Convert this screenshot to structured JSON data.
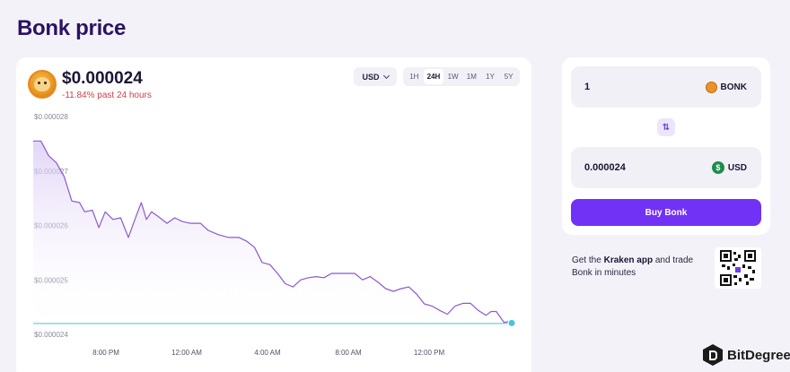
{
  "page": {
    "title": "Bonk price"
  },
  "price_header": {
    "logo_icon": "bonk-coin-icon",
    "price": "$0.000024",
    "change": "-11.84% past 24 hours",
    "change_color": "#d33c4e"
  },
  "controls": {
    "currency": "USD",
    "ranges": [
      "1H",
      "24H",
      "1W",
      "1M",
      "1Y",
      "5Y"
    ],
    "active_range": "24H"
  },
  "chart_data": {
    "type": "area",
    "y_ticks": [
      "$0.000028",
      "$0.000027",
      "$0.000026",
      "$0.000025",
      "$0.000024"
    ],
    "x_ticks": [
      "8:00 PM",
      "12:00 AM",
      "4:00 AM",
      "8:00 AM",
      "12:00 PM"
    ],
    "ylim": [
      2.4e-05,
      2.8e-05
    ],
    "line_color": "#8a5ad0",
    "reference_line_color": "#48c2de",
    "reference_value": 2.42e-05,
    "series": [
      {
        "points": [
          [
            0.0,
            2.755e-05
          ],
          [
            0.3,
            2.755e-05
          ],
          [
            0.6,
            2.728e-05
          ],
          [
            0.9,
            2.715e-05
          ],
          [
            1.2,
            2.69e-05
          ],
          [
            1.5,
            2.645e-05
          ],
          [
            1.8,
            2.642e-05
          ],
          [
            2.0,
            2.625e-05
          ],
          [
            2.3,
            2.628e-05
          ],
          [
            2.55,
            2.596e-05
          ],
          [
            2.8,
            2.625e-05
          ],
          [
            3.1,
            2.611e-05
          ],
          [
            3.4,
            2.614e-05
          ],
          [
            3.7,
            2.578e-05
          ],
          [
            4.0,
            2.617e-05
          ],
          [
            4.2,
            2.642e-05
          ],
          [
            4.4,
            2.611e-05
          ],
          [
            4.6,
            2.625e-05
          ],
          [
            4.9,
            2.615e-05
          ],
          [
            5.2,
            2.604e-05
          ],
          [
            5.5,
            2.614e-05
          ],
          [
            5.8,
            2.607e-05
          ],
          [
            6.1,
            2.604e-05
          ],
          [
            6.5,
            2.604e-05
          ],
          [
            6.8,
            2.591e-05
          ],
          [
            7.2,
            2.583e-05
          ],
          [
            7.6,
            2.578e-05
          ],
          [
            8.0,
            2.578e-05
          ],
          [
            8.3,
            2.571e-05
          ],
          [
            8.6,
            2.56e-05
          ],
          [
            8.9,
            2.532e-05
          ],
          [
            9.2,
            2.528e-05
          ],
          [
            9.5,
            2.512e-05
          ],
          [
            9.8,
            2.493e-05
          ],
          [
            10.1,
            2.487e-05
          ],
          [
            10.4,
            2.5e-05
          ],
          [
            10.7,
            2.504e-05
          ],
          [
            11.0,
            2.506e-05
          ],
          [
            11.3,
            2.504e-05
          ],
          [
            11.6,
            2.512e-05
          ],
          [
            11.9,
            2.512e-05
          ],
          [
            12.2,
            2.512e-05
          ],
          [
            12.5,
            2.512e-05
          ],
          [
            12.8,
            2.5e-05
          ],
          [
            13.1,
            2.506e-05
          ],
          [
            13.4,
            2.496e-05
          ],
          [
            13.7,
            2.484e-05
          ],
          [
            14.0,
            2.479e-05
          ],
          [
            14.3,
            2.484e-05
          ],
          [
            14.6,
            2.487e-05
          ],
          [
            14.9,
            2.474e-05
          ],
          [
            15.2,
            2.456e-05
          ],
          [
            15.5,
            2.452e-05
          ],
          [
            15.8,
            2.444e-05
          ],
          [
            16.1,
            2.437e-05
          ],
          [
            16.4,
            2.452e-05
          ],
          [
            16.7,
            2.457e-05
          ],
          [
            17.0,
            2.457e-05
          ],
          [
            17.3,
            2.444e-05
          ],
          [
            17.6,
            2.435e-05
          ],
          [
            17.8,
            2.442e-05
          ],
          [
            18.0,
            2.442e-05
          ],
          [
            18.3,
            2.422e-05
          ],
          [
            18.6,
            2.424e-05
          ]
        ]
      }
    ]
  },
  "converter": {
    "from_amount": "1",
    "from_token": "BONK",
    "from_icon": "bonk-coin-icon",
    "to_amount": "0.000024",
    "to_token": "USD",
    "to_icon": "dollar-coin-icon",
    "swap_icon": "swap-arrows-icon",
    "swap_glyph": "⇅",
    "buy_label": "Buy Bonk",
    "buy_color": "#7132f5"
  },
  "promo": {
    "prefix": "Get the",
    "app_name": "Kraken app",
    "suffix": "and trade Bonk in minutes",
    "qr_icon": "qr-code-icon"
  },
  "watermark": {
    "text": "BitDegree",
    "icon": "bitdegree-logo-icon"
  }
}
